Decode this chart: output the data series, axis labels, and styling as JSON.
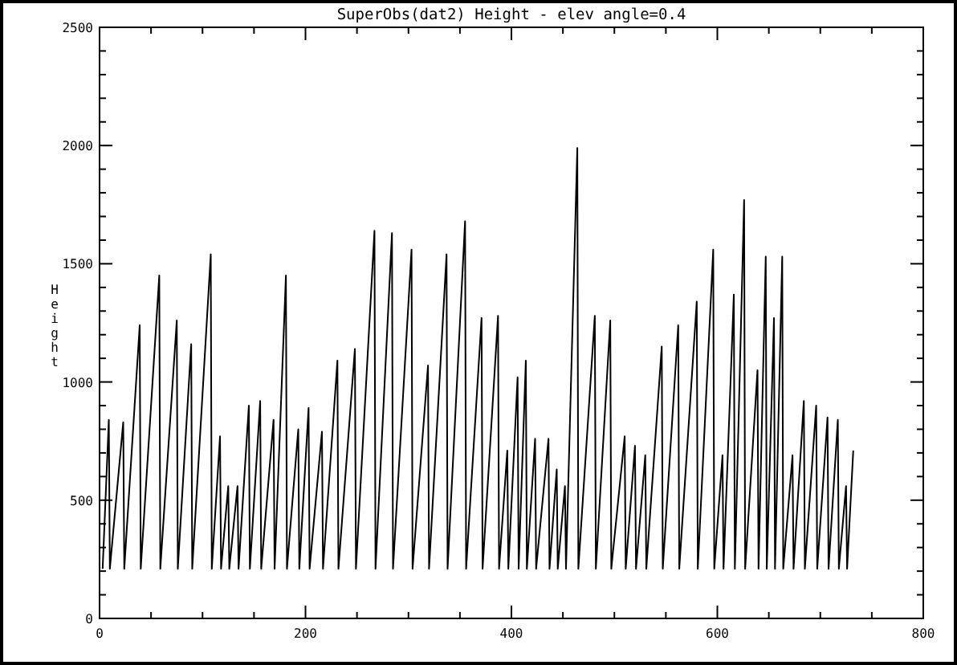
{
  "chart_data": {
    "type": "line",
    "title": "SuperObs(dat2) Height - elev angle=0.4",
    "ylabel": "Height",
    "xlim": [
      0,
      800
    ],
    "xticks": [
      0,
      {
        "value": 50,
        "label": null
      },
      {
        "value": 100,
        "label": null
      },
      {
        "value": 150,
        "label": null
      },
      200,
      {
        "value": 250,
        "label": null
      },
      {
        "value": 300,
        "label": null
      },
      {
        "value": 350,
        "label": null
      },
      400,
      {
        "value": 450,
        "label": null
      },
      {
        "value": 500,
        "label": null
      },
      {
        "value": 550,
        "label": null
      },
      600,
      {
        "value": 650,
        "label": null
      },
      {
        "value": 700,
        "label": null
      },
      {
        "value": 750,
        "label": null
      },
      800
    ],
    "ylim": [
      0,
      2500
    ],
    "yticks": [
      0,
      {
        "value": 100,
        "label": null
      },
      {
        "value": 200,
        "label": null
      },
      {
        "value": 300,
        "label": null
      },
      {
        "value": 400,
        "label": null
      },
      500,
      {
        "value": 600,
        "label": null
      },
      {
        "value": 700,
        "label": null
      },
      {
        "value": 800,
        "label": null
      },
      {
        "value": 900,
        "label": null
      },
      1000,
      {
        "value": 1100,
        "label": null
      },
      {
        "value": 1200,
        "label": null
      },
      {
        "value": 1300,
        "label": null
      },
      {
        "value": 1400,
        "label": null
      },
      1500,
      {
        "value": 1600,
        "label": null
      },
      {
        "value": 1700,
        "label": null
      },
      {
        "value": 1800,
        "label": null
      },
      {
        "value": 1900,
        "label": null
      },
      2000,
      {
        "value": 2100,
        "label": null
      },
      {
        "value": 2200,
        "label": null
      },
      {
        "value": 2300,
        "label": null
      },
      {
        "value": 2400,
        "label": null
      },
      2500
    ],
    "grid": false,
    "marker": "none",
    "line_style": "solid",
    "series": [
      {
        "color": "#000000",
        "x": [
          3,
          9,
          10,
          23,
          24,
          39,
          40,
          58,
          59,
          75,
          76,
          89,
          90,
          108,
          109,
          117,
          118,
          125,
          126,
          134,
          135,
          145,
          146,
          156,
          157,
          169,
          170,
          181,
          182,
          193,
          194,
          203,
          204,
          216,
          217,
          231,
          232,
          248,
          249,
          267,
          268,
          284,
          285,
          303,
          304,
          319,
          320,
          337,
          338,
          355,
          356,
          371,
          372,
          387,
          388,
          396,
          397,
          406,
          407,
          414,
          415,
          423,
          424,
          436,
          437,
          444,
          445,
          452,
          453,
          464,
          465,
          481,
          482,
          496,
          497,
          510,
          511,
          520,
          521,
          530,
          531,
          546,
          547,
          562,
          563,
          580,
          581,
          596,
          597,
          605,
          606,
          616,
          617,
          626,
          627,
          639,
          640,
          647,
          648,
          655,
          656,
          663,
          664,
          673,
          674,
          684,
          685,
          696,
          697,
          707,
          708,
          717,
          718,
          725,
          726,
          732
        ],
        "values": [
          210,
          840,
          210,
          830,
          210,
          1240,
          210,
          1450,
          210,
          1260,
          210,
          1160,
          210,
          1540,
          210,
          770,
          210,
          560,
          210,
          560,
          210,
          900,
          210,
          920,
          210,
          840,
          210,
          1450,
          210,
          800,
          210,
          890,
          210,
          790,
          210,
          1090,
          210,
          1140,
          210,
          1640,
          210,
          1630,
          210,
          1560,
          210,
          1070,
          210,
          1540,
          210,
          1680,
          210,
          1270,
          210,
          1280,
          210,
          710,
          210,
          1020,
          210,
          1090,
          210,
          760,
          210,
          760,
          210,
          630,
          210,
          560,
          210,
          1990,
          210,
          1280,
          210,
          1260,
          210,
          770,
          210,
          730,
          210,
          690,
          210,
          1150,
          210,
          1240,
          210,
          1340,
          210,
          1560,
          210,
          690,
          210,
          1370,
          210,
          1770,
          210,
          1050,
          210,
          1530,
          210,
          1270,
          210,
          1530,
          210,
          690,
          210,
          920,
          210,
          900,
          210,
          850,
          210,
          840,
          210,
          560,
          210,
          710
        ]
      }
    ]
  }
}
